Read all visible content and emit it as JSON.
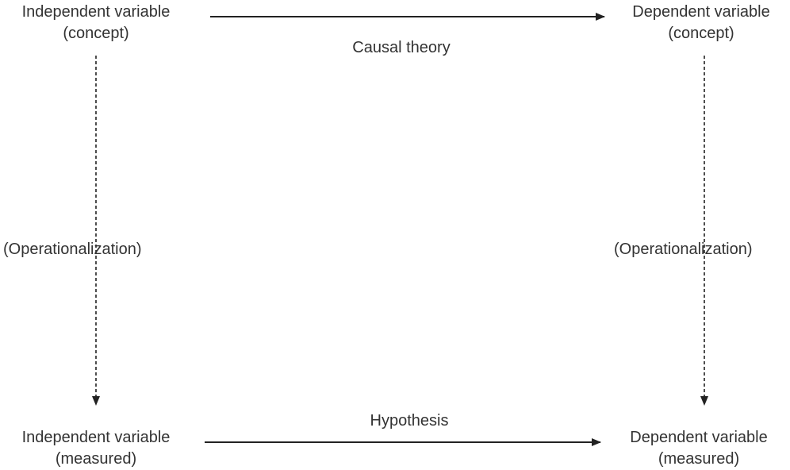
{
  "diagram": {
    "nodes": {
      "iv_concept": {
        "line1": "Independent variable",
        "line2": "(concept)"
      },
      "dv_concept": {
        "line1": "Dependent variable",
        "line2": "(concept)"
      },
      "iv_measured": {
        "line1": "Independent variable",
        "line2": "(measured)"
      },
      "dv_measured": {
        "line1": "Dependent variable",
        "line2": "(measured)"
      }
    },
    "edges": {
      "causal_theory": "Causal theory",
      "hypothesis": "Hypothesis",
      "operationalization_left": "(Operationalization)",
      "operationalization_right": "(Operationalization)"
    }
  }
}
